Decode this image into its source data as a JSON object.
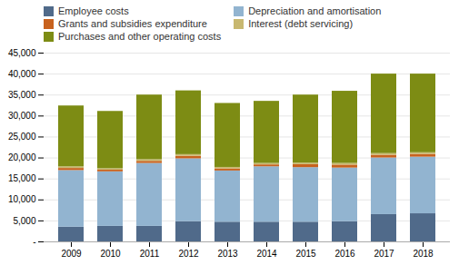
{
  "chart_data": {
    "type": "bar",
    "stacked": true,
    "categories": [
      "2009",
      "2010",
      "2011",
      "2012",
      "2013",
      "2014",
      "2015",
      "2016",
      "2017",
      "2018"
    ],
    "series": [
      {
        "name": "Employee costs",
        "color": "#506A8A",
        "values": [
          3500,
          3700,
          3700,
          4800,
          4700,
          4700,
          4700,
          4800,
          6500,
          6700
        ]
      },
      {
        "name": "Depreciation and amortisation",
        "color": "#92B4D0",
        "values": [
          13500,
          13000,
          15000,
          15000,
          12200,
          13200,
          13000,
          12800,
          13500,
          13500
        ]
      },
      {
        "name": "Grants and subsidies expenditure",
        "color": "#C8621E",
        "values": [
          500,
          400,
          500,
          600,
          500,
          450,
          700,
          700,
          650,
          650
        ]
      },
      {
        "name": "Interest (debt servicing)",
        "color": "#C8B870",
        "values": [
          400,
          350,
          400,
          400,
          350,
          350,
          400,
          400,
          400,
          400
        ]
      },
      {
        "name": "Purchases and other operating costs",
        "color": "#7D8C14",
        "values": [
          14500,
          13650,
          15400,
          15200,
          15250,
          14800,
          16200,
          17200,
          18950,
          18750
        ]
      }
    ],
    "ylim": [
      0,
      45000
    ],
    "yticks": [
      {
        "value": 0,
        "label": "-"
      },
      {
        "value": 5000,
        "label": "5,000"
      },
      {
        "value": 10000,
        "label": "10,000"
      },
      {
        "value": 15000,
        "label": "15,000"
      },
      {
        "value": 20000,
        "label": "20,000"
      },
      {
        "value": 25000,
        "label": "25,000"
      },
      {
        "value": 30000,
        "label": "30,000"
      },
      {
        "value": 35000,
        "label": "35,000"
      },
      {
        "value": 40000,
        "label": "40,000"
      },
      {
        "value": 45000,
        "label": "45,000"
      }
    ],
    "grid": true,
    "legend": "upper left"
  }
}
